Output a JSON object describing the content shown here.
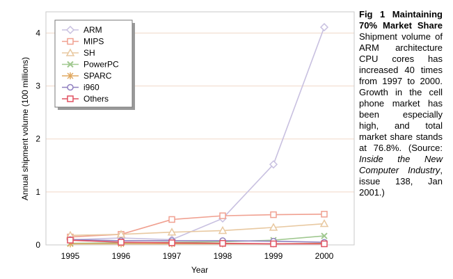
{
  "chart_data": {
    "type": "line",
    "x": [
      "1995",
      "1996",
      "1997",
      "1998",
      "1999",
      "2000"
    ],
    "xlabel": "Year",
    "ylabel": "Annual shipment volume (100 millions)",
    "ylim": [
      0,
      4.4
    ],
    "yticks": [
      "0",
      "1",
      "2",
      "3",
      "4"
    ],
    "grid": "horizontal",
    "legend_position": "top-left",
    "series": [
      {
        "name": "ARM",
        "color": "#c8c0e0",
        "marker": "diamond",
        "values": [
          0.1,
          0.13,
          0.1,
          0.5,
          1.52,
          4.11
        ]
      },
      {
        "name": "MIPS",
        "color": "#f0a090",
        "marker": "square",
        "values": [
          0.15,
          0.2,
          0.48,
          0.55,
          0.57,
          0.58
        ]
      },
      {
        "name": "SH",
        "color": "#e8c8a0",
        "marker": "triangle",
        "values": [
          0.18,
          0.2,
          0.24,
          0.27,
          0.33,
          0.4
        ]
      },
      {
        "name": "PowerPC",
        "color": "#a0c890",
        "marker": "x",
        "values": [
          0.03,
          0.04,
          0.05,
          0.06,
          0.09,
          0.17
        ]
      },
      {
        "name": "SPARC",
        "color": "#e0a860",
        "marker": "star",
        "values": [
          0.02,
          0.02,
          0.02,
          0.02,
          0.02,
          0.03
        ]
      },
      {
        "name": "i960",
        "color": "#9080c0",
        "marker": "circle",
        "values": [
          0.1,
          0.08,
          0.08,
          0.08,
          0.07,
          0.05
        ]
      },
      {
        "name": "Others",
        "color": "#e05060",
        "marker": "square",
        "values": [
          0.09,
          0.05,
          0.04,
          0.03,
          0.02,
          0.02
        ]
      }
    ]
  },
  "caption": {
    "title": "Fig 1 Maintaining 70% Market Share",
    "body": " Shipment volume of ARM architecture CPU cores has increased 40 times from 1997 to 2000. Growth in the cell phone market has been especially high, and total market share stands at 76.8%. (Source: ",
    "source": "Inside the New Computer Industry",
    "tail": ", issue 138, Jan 2001.)"
  }
}
